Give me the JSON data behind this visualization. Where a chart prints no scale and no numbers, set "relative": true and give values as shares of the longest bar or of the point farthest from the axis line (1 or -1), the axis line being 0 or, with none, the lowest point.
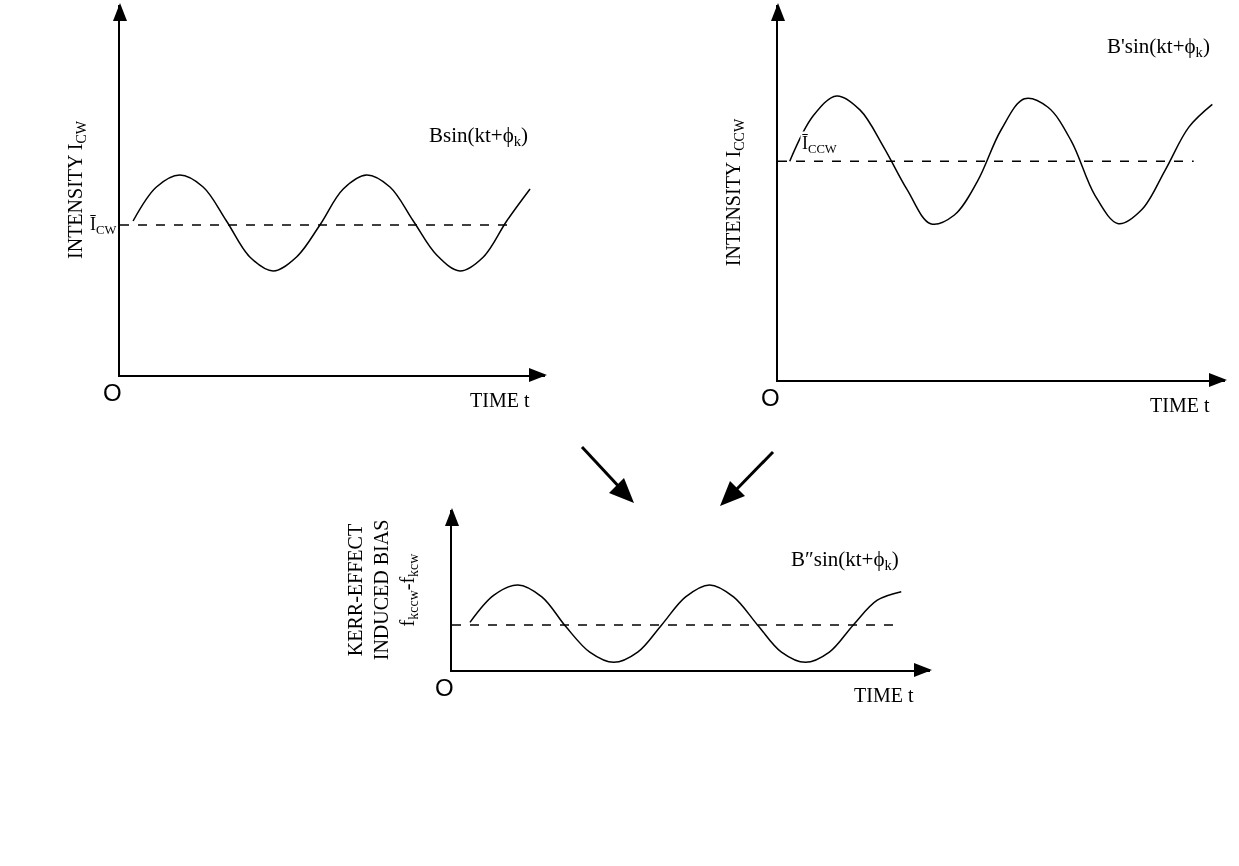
{
  "chart_data": [
    {
      "type": "line",
      "ylabel": "INTENSITY I$_{CW}$",
      "xlabel": "TIME t",
      "relative": true,
      "grid": false,
      "legend": false,
      "marker": "none",
      "line_style": "solid",
      "categories": [
        null,
        null,
        null,
        null,
        null,
        null,
        null,
        null,
        null,
        null,
        null,
        null,
        null,
        null,
        null,
        null,
        null,
        null
      ],
      "series": [
        {
          "name": "Bsin(kt+ϕ$_{k}$)",
          "color": "#000000",
          "values": [
            0.77,
            0.94,
            1,
            0.94,
            0.77,
            0.59,
            0.52,
            0.59,
            0.75,
            0.93,
            1,
            0.94,
            0.77,
            0.6,
            0.52,
            0.59,
            0.77,
            0.93
          ]
        }
      ],
      "ref_lines": [
        {
          "axis": "y",
          "value": 0.75,
          "label": "Ī$_{CW}$",
          "color": "#000000",
          "line_style": "dashed"
        }
      ],
      "annotations": [
        "O"
      ]
    },
    {
      "type": "line",
      "ylabel": "INTENSITY I$_{CCW}$",
      "xlabel": "TIME t",
      "relative": true,
      "grid": false,
      "legend": false,
      "marker": "none",
      "line_style": "solid",
      "categories": [
        null,
        null,
        null,
        null,
        null,
        null,
        null,
        null,
        null,
        null,
        null,
        null,
        null,
        null,
        null,
        null,
        null,
        null,
        null
      ],
      "series": [
        {
          "name": "B'sin(kt+ϕ$_{k}$)",
          "color": "#000000",
          "values": [
            0.77,
            0.93,
            1,
            0.95,
            0.82,
            0.67,
            0.55,
            0.58,
            0.7,
            0.88,
            0.99,
            0.96,
            0.84,
            0.65,
            0.55,
            0.6,
            0.74,
            0.89,
            0.97
          ]
        }
      ],
      "ref_lines": [
        {
          "axis": "y",
          "value": 0.77,
          "label": "Ī$_{CCW}$",
          "color": "#000000",
          "line_style": "dashed"
        }
      ],
      "annotations": [
        "O"
      ]
    },
    {
      "type": "line",
      "ylabel": "KERR-EFFECT\nINDUCED BIAS\nf$_{kccw}$-f$_{kcw}$",
      "xlabel": "TIME t",
      "relative": true,
      "grid": false,
      "legend": false,
      "marker": "none",
      "line_style": "solid",
      "categories": [
        null,
        null,
        null,
        null,
        null,
        null,
        null,
        null,
        null,
        null,
        null,
        null,
        null,
        null,
        null,
        null,
        null,
        null,
        null
      ],
      "series": [
        {
          "name": "B″sin(kt+ϕ$_{k}$)",
          "color": "#000000",
          "values": [
            0.56,
            0.88,
            1,
            0.86,
            0.51,
            0.21,
            0.09,
            0.21,
            0.53,
            0.86,
            1,
            0.86,
            0.53,
            0.21,
            0.09,
            0.21,
            0.53,
            0.82,
            0.92
          ]
        }
      ],
      "ref_lines": [
        {
          "axis": "y",
          "value": 0.53,
          "color": "#000000",
          "line_style": "dashed"
        }
      ],
      "annotations": [
        "O"
      ]
    }
  ]
}
